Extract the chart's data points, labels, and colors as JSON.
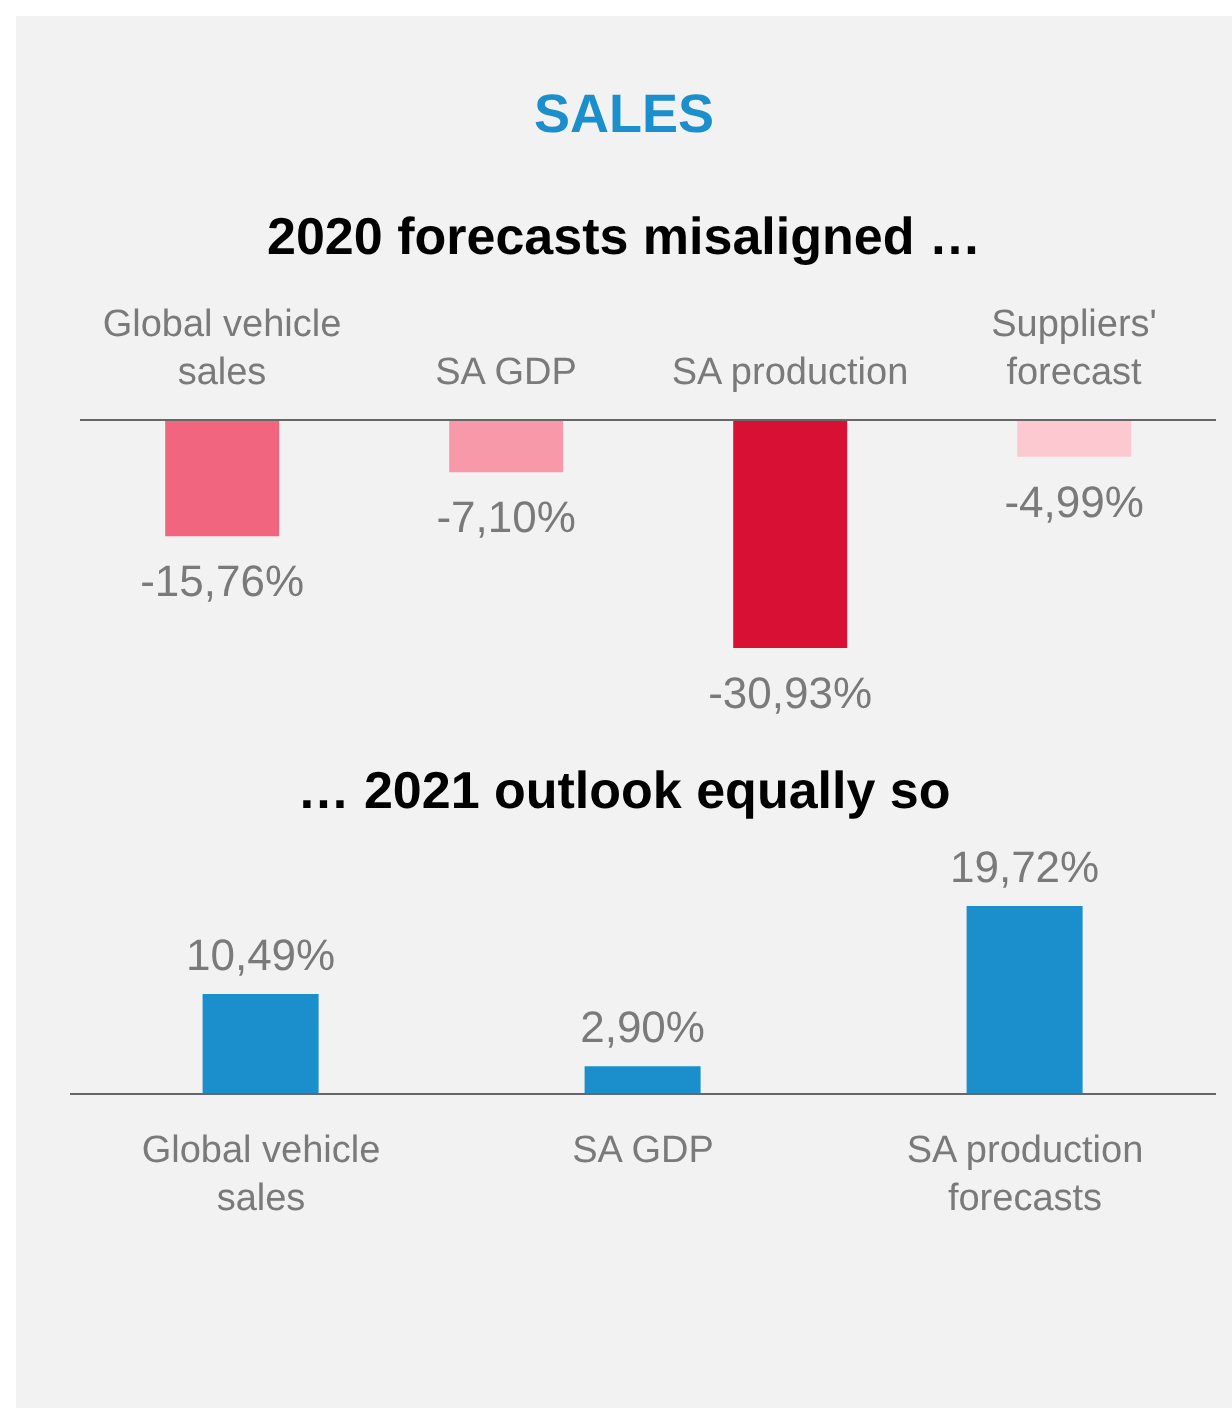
{
  "chart_data": [
    {
      "type": "bar",
      "title": "SALES",
      "subtitle": "2020 forecasts misaligned …",
      "categories": [
        "Global vehicle sales",
        "SA GDP",
        "SA production",
        "Suppliers' forecast"
      ],
      "values": [
        -15.76,
        -7.1,
        -30.93,
        -4.99
      ],
      "colors": [
        "#f2657e",
        "#f799a9",
        "#d81034",
        "#fcc9d1"
      ],
      "value_labels": [
        "-15,76%",
        "-7,10%",
        "-30,93%",
        "-4,99%"
      ],
      "tick_labels": "x"
    },
    {
      "type": "bar",
      "title": "… 2021 outlook equally so",
      "categories": [
        "Global vehicle sales",
        "SA GDP",
        "SA production forecasts"
      ],
      "values": [
        10.49,
        2.9,
        19.72
      ],
      "colors": [
        "#1a8fcc",
        "#1a8fcc",
        "#1a8fcc"
      ],
      "value_labels": [
        "10,49%",
        "2,90%",
        "19,72%"
      ],
      "tick_labels": "x"
    }
  ]
}
